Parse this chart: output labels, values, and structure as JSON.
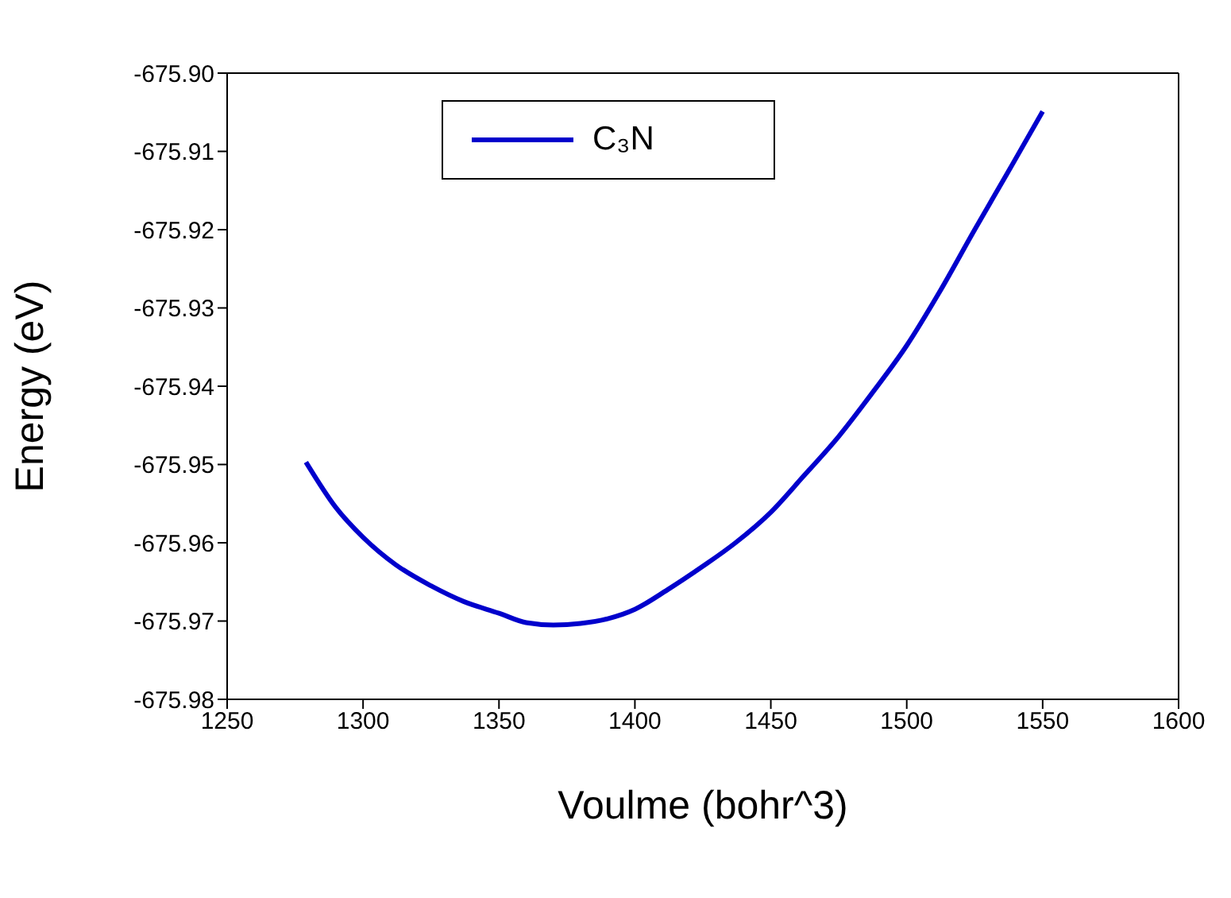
{
  "chart_data": {
    "type": "line",
    "xlabel": "Voulme (bohr^3)",
    "ylabel": "Energy (eV)",
    "x": [
      1279,
      1290,
      1300,
      1312,
      1325,
      1337,
      1350,
      1360,
      1370,
      1380,
      1390,
      1400,
      1412,
      1425,
      1437,
      1450,
      1462,
      1475,
      1487,
      1500,
      1512,
      1525,
      1537,
      1550
    ],
    "series": [
      {
        "name": "C₃N",
        "color": "#0000cc",
        "values": [
          -675.9497,
          -675.9555,
          -675.9593,
          -675.9628,
          -675.9655,
          -675.9675,
          -675.969,
          -675.9702,
          -675.9705,
          -675.9703,
          -675.9697,
          -675.9685,
          -675.966,
          -675.963,
          -675.96,
          -675.9561,
          -675.9515,
          -675.9464,
          -675.941,
          -675.9348,
          -675.928,
          -675.92,
          -675.9128,
          -675.9049
        ]
      }
    ],
    "xlim": [
      1250,
      1600
    ],
    "xticks": [
      1250,
      1300,
      1350,
      1400,
      1450,
      1500,
      1550,
      1600
    ],
    "ylim": [
      -675.98,
      -675.9
    ],
    "yticks": [
      {
        "value": -675.98,
        "label": "-675.98"
      },
      {
        "value": -675.97,
        "label": "-675.97"
      },
      {
        "value": -675.96,
        "label": "-675.96"
      },
      {
        "value": -675.95,
        "label": "-675.95"
      },
      {
        "value": -675.94,
        "label": "-675.94"
      },
      {
        "value": -675.93,
        "label": "-675.93"
      },
      {
        "value": -675.92,
        "label": "-675.92"
      },
      {
        "value": -675.91,
        "label": "-675.91"
      },
      {
        "value": -675.9,
        "label": "-675.90"
      }
    ],
    "grid": false,
    "legend": "top left",
    "marker": "none",
    "line_style": "solid"
  }
}
